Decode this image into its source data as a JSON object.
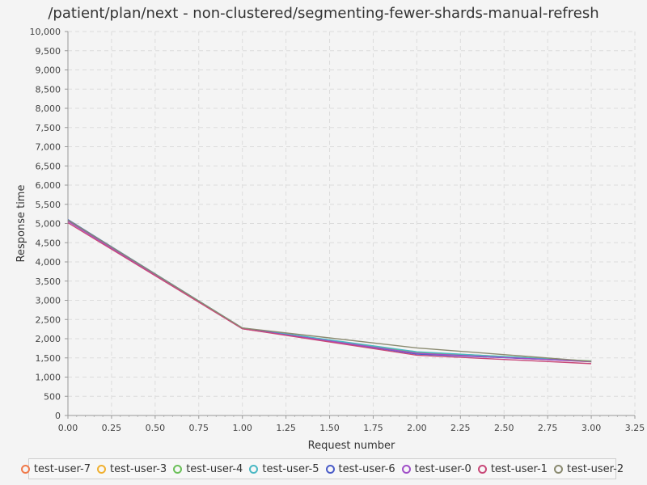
{
  "chart_data": {
    "type": "line",
    "title": "/patient/plan/next - non-clustered/segmenting-fewer-shards-manual-refresh",
    "xlabel": "Request number",
    "ylabel": "Response time",
    "xlim": [
      0,
      3.25
    ],
    "ylim": [
      0,
      10000
    ],
    "xticks": [
      0,
      0.25,
      0.5,
      0.75,
      1.0,
      1.25,
      1.5,
      1.75,
      2.0,
      2.25,
      2.5,
      2.75,
      3.0,
      3.25
    ],
    "xtick_labels": [
      "0.00",
      "0.25",
      "0.50",
      "0.75",
      "1.00",
      "1.25",
      "1.50",
      "1.75",
      "2.00",
      "2.25",
      "2.50",
      "2.75",
      "3.00",
      "3.25"
    ],
    "yticks": [
      0,
      500,
      1000,
      1500,
      2000,
      2500,
      3000,
      3500,
      4000,
      4500,
      5000,
      5500,
      6000,
      6500,
      7000,
      7500,
      8000,
      8500,
      9000,
      9500,
      10000
    ],
    "ytick_labels": [
      "0",
      "500",
      "1,000",
      "1,500",
      "2,000",
      "2,500",
      "3,000",
      "3,500",
      "4,000",
      "4,500",
      "5,000",
      "5,500",
      "6,000",
      "6,500",
      "7,000",
      "7,500",
      "8,000",
      "8,500",
      "9,000",
      "9,500",
      "10,000"
    ],
    "grid": true,
    "legend_position": "bottom",
    "x": [
      0,
      1,
      2,
      3
    ],
    "series": [
      {
        "name": "test-user-7",
        "color": "#f07a4a",
        "values": [
          5080,
          2270,
          1640,
          1410
        ]
      },
      {
        "name": "test-user-3",
        "color": "#f0b030",
        "values": [
          5070,
          2260,
          1620,
          1400
        ]
      },
      {
        "name": "test-user-4",
        "color": "#6cc05a",
        "values": [
          5090,
          2270,
          1650,
          1420
        ]
      },
      {
        "name": "test-user-5",
        "color": "#4ab8c4",
        "values": [
          5100,
          2280,
          1660,
          1410
        ]
      },
      {
        "name": "test-user-6",
        "color": "#4a5cc8",
        "values": [
          5100,
          2270,
          1600,
          1410
        ]
      },
      {
        "name": "test-user-0",
        "color": "#a050c8",
        "values": [
          5060,
          2260,
          1620,
          1400
        ]
      },
      {
        "name": "test-user-1",
        "color": "#c84878",
        "values": [
          5020,
          2260,
          1570,
          1350
        ]
      },
      {
        "name": "test-user-2",
        "color": "#8a8a70",
        "values": [
          5090,
          2280,
          1760,
          1410
        ]
      }
    ]
  }
}
